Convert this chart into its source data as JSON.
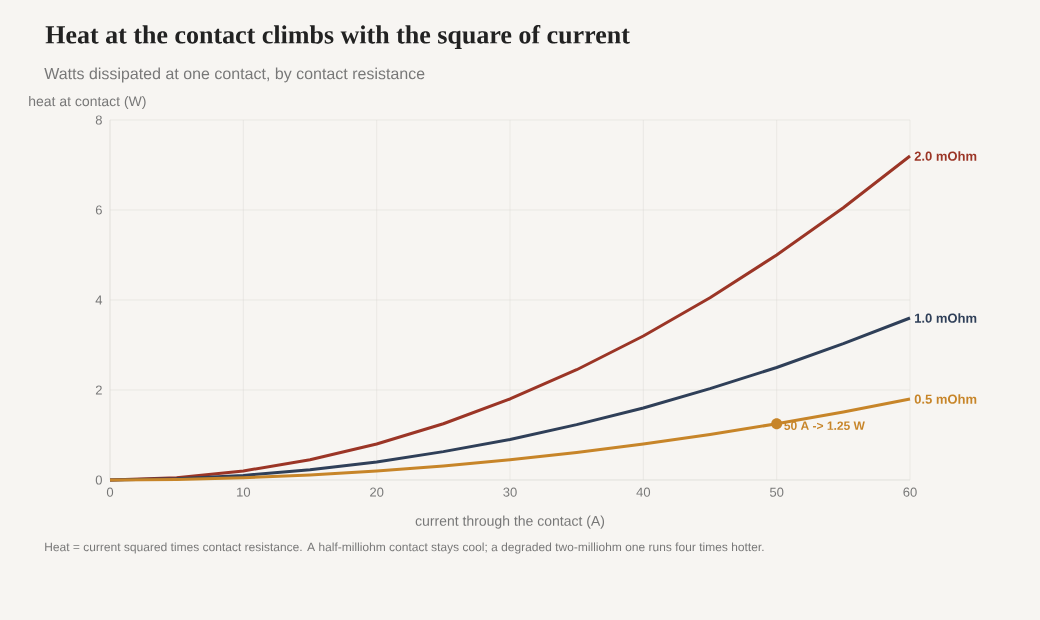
{
  "chart_data": {
    "type": "line",
    "title": "Heat at the contact climbs with the square of current",
    "subtitle": "Watts dissipated at one contact, by contact resistance",
    "xlabel": "current through the contact (A)",
    "ylabel": "heat at contact (W)",
    "x": [
      0,
      5,
      10,
      15,
      20,
      25,
      30,
      35,
      40,
      45,
      50,
      55,
      60
    ],
    "series": [
      {
        "name": "2.0 mOhm",
        "color": "#9b3526",
        "values": [
          0,
          0.05,
          0.2,
          0.45,
          0.8,
          1.25,
          1.8,
          2.45,
          3.2,
          4.05,
          5.0,
          6.05,
          7.2
        ]
      },
      {
        "name": "1.0 mOhm",
        "color": "#2f3f58",
        "values": [
          0,
          0.03,
          0.1,
          0.23,
          0.4,
          0.63,
          0.9,
          1.23,
          1.6,
          2.03,
          2.5,
          3.03,
          3.6
        ]
      },
      {
        "name": "0.5 mOhm",
        "color": "#c78529",
        "values": [
          0,
          0.01,
          0.05,
          0.11,
          0.2,
          0.31,
          0.45,
          0.61,
          0.8,
          1.01,
          1.25,
          1.51,
          1.8
        ]
      }
    ],
    "xlim": [
      0,
      60
    ],
    "ylim": [
      0,
      8
    ],
    "xticks": [
      0,
      10,
      20,
      30,
      40,
      50,
      60
    ],
    "yticks": [
      0,
      2,
      4,
      6,
      8
    ],
    "grid": true,
    "annotations": [
      {
        "text": "50 A -> 1.25 W",
        "x": 50,
        "y": 1.25
      },
      "Heat = current squared times contact resistance. A half-milliohm contact stays cool; a degraded two-milliohm one runs four times hotter."
    ]
  }
}
